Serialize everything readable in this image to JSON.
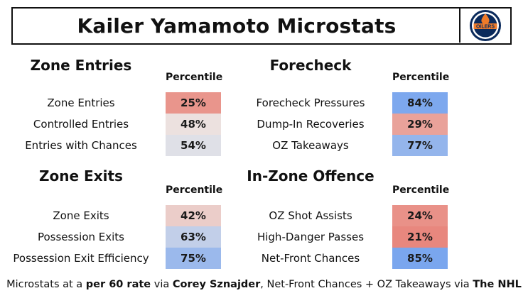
{
  "title": "Kailer Yamamoto Microstats",
  "logo_text": "OILERS",
  "percentile_header": "Percentile",
  "colors": {
    "low": "#e8847a",
    "mid": "#ece8e6",
    "high": "#7aa6ee"
  },
  "chart_data": [
    {
      "type": "table",
      "title": "Zone Entries",
      "column": "Percentile",
      "rows": [
        {
          "label": "Zone Entries",
          "value": 25,
          "display": "25%"
        },
        {
          "label": "Controlled Entries",
          "value": 48,
          "display": "48%"
        },
        {
          "label": "Entries with Chances",
          "value": 54,
          "display": "54%"
        }
      ]
    },
    {
      "type": "table",
      "title": "Forecheck",
      "column": "Percentile",
      "rows": [
        {
          "label": "Forecheck Pressures",
          "value": 84,
          "display": "84%"
        },
        {
          "label": "Dump-In Recoveries",
          "value": 29,
          "display": "29%"
        },
        {
          "label": "OZ Takeaways",
          "value": 77,
          "display": "77%"
        }
      ]
    },
    {
      "type": "table",
      "title": "Zone Exits",
      "column": "Percentile",
      "rows": [
        {
          "label": "Zone Exits",
          "value": 42,
          "display": "42%"
        },
        {
          "label": "Possession Exits",
          "value": 63,
          "display": "63%"
        },
        {
          "label": "Possession Exit Efficiency",
          "value": 75,
          "display": "75%"
        }
      ]
    },
    {
      "type": "table",
      "title": "In-Zone Offence",
      "column": "Percentile",
      "rows": [
        {
          "label": "OZ Shot Assists",
          "value": 24,
          "display": "24%"
        },
        {
          "label": "High-Danger Passes",
          "value": 21,
          "display": "21%"
        },
        {
          "label": "Net-Front Chances",
          "value": 85,
          "display": "85%"
        }
      ]
    }
  ],
  "footer": {
    "t1": "Microstats at a ",
    "b1": "per 60 rate",
    "t2": " via ",
    "b2": "Corey Sznajder",
    "t3": ", Net-Front Chances + OZ Takeaways via ",
    "b3": "The NHL"
  }
}
